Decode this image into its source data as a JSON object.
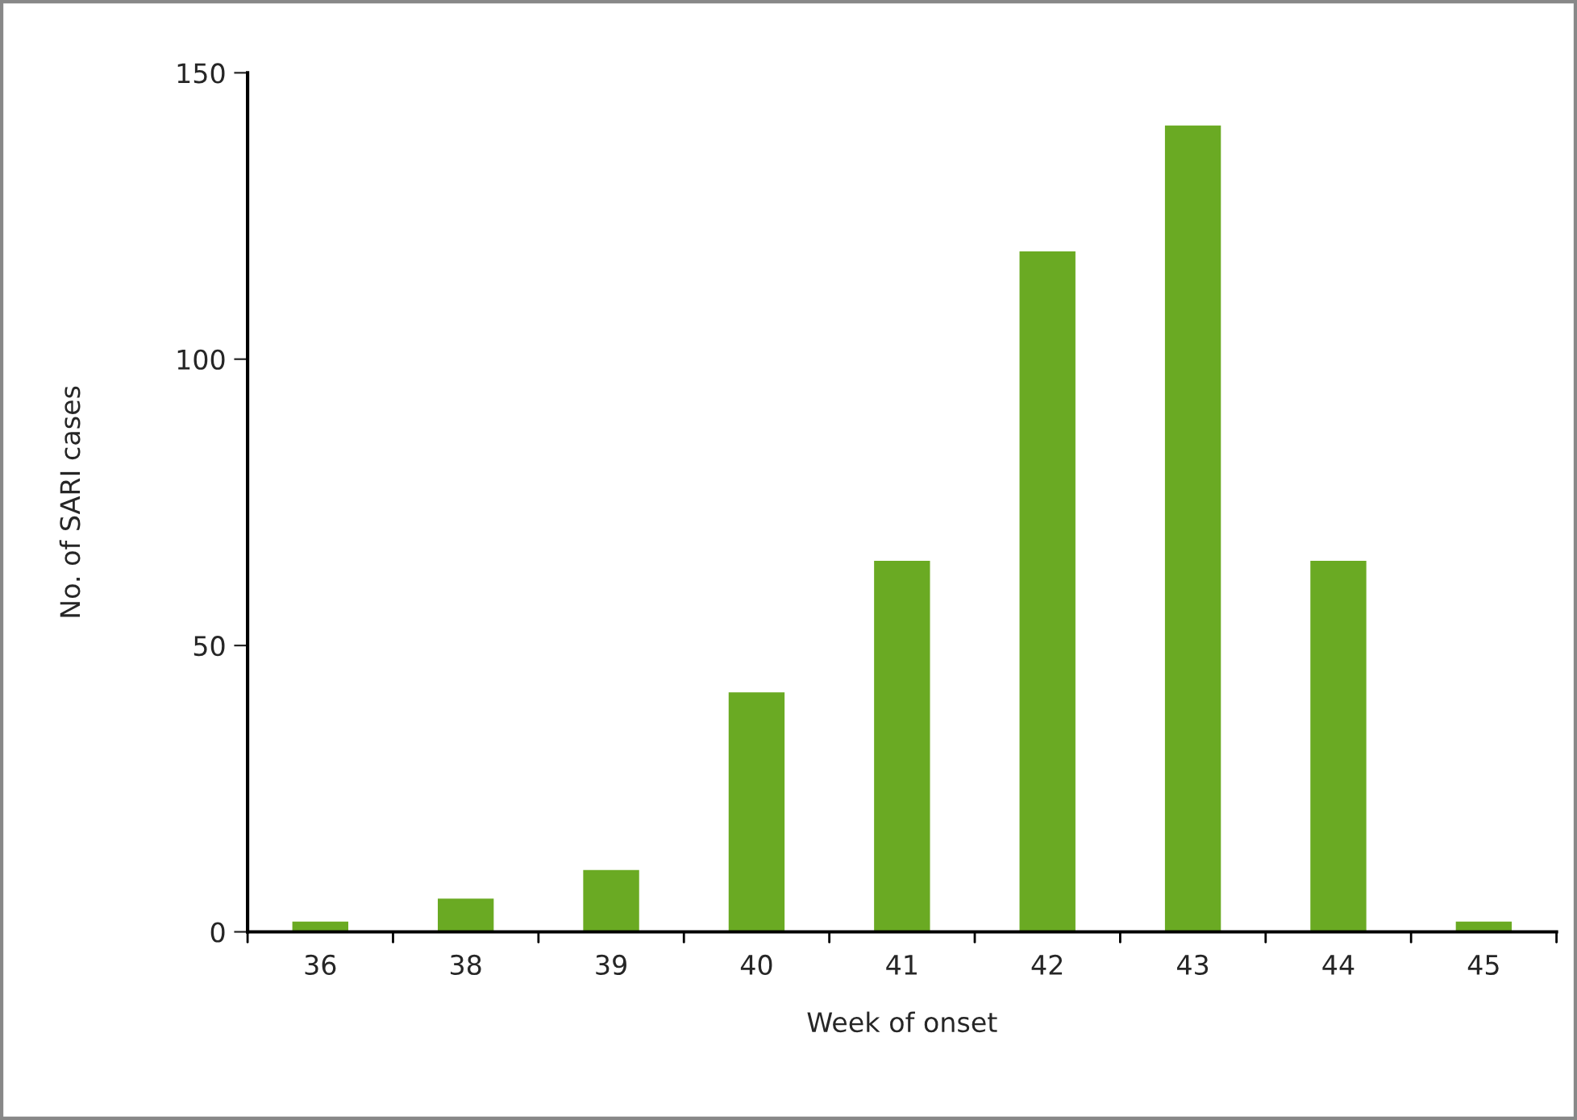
{
  "chart_data": {
    "type": "bar",
    "xlabel": "Week of onset",
    "ylabel": "No. of SARI cases",
    "categories": [
      "36",
      "38",
      "39",
      "40",
      "41",
      "42",
      "43",
      "44",
      "45"
    ],
    "values": [
      2,
      6,
      11,
      42,
      65,
      119,
      141,
      65,
      2
    ],
    "color": "#6aaa23",
    "ylim": [
      0,
      150
    ],
    "yticks": [
      0,
      50,
      100,
      150
    ],
    "grid": false,
    "legend": false
  }
}
